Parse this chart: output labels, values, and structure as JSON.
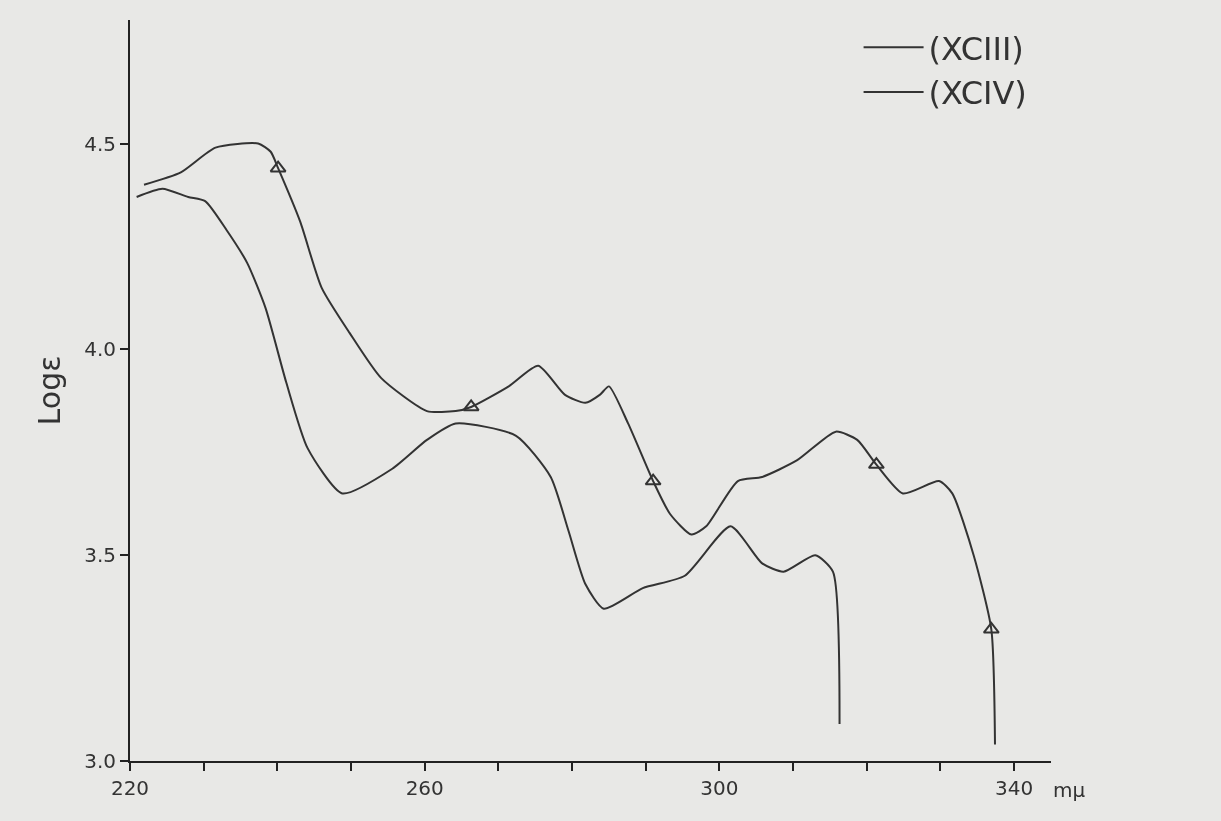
{
  "chart_data": {
    "type": "line",
    "xlabel": "mμ",
    "ylabel": "Logε",
    "xlim": [
      220,
      345
    ],
    "ylim": [
      3.0,
      4.8
    ],
    "xticks": [
      220,
      {
        "value": 230,
        "label": null
      },
      {
        "value": 240,
        "label": null
      },
      {
        "value": 250,
        "label": null
      },
      260,
      {
        "value": 270,
        "label": null
      },
      {
        "value": 280,
        "label": null
      },
      {
        "value": 290,
        "label": null
      },
      300,
      {
        "value": 310,
        "label": null
      },
      {
        "value": 320,
        "label": null
      },
      {
        "value": 330,
        "label": null
      },
      340
    ],
    "yticks": [
      {
        "value": 3.0,
        "label": "3.0"
      },
      3.5,
      {
        "value": 4.0,
        "label": "4.0"
      },
      4.5
    ],
    "grid": false,
    "legend": "top right",
    "line_style": "solid",
    "series": [
      {
        "name": "(XCIII)",
        "color": "#333333",
        "x": [
          221.9,
          226.9,
          231.6,
          237.4,
          239.1,
          240.1,
          243.1,
          246.0,
          249.8,
          254.1,
          260.3,
          264.2,
          266.3,
          271.4,
          275.4,
          279.0,
          281.8,
          283.8,
          285.0,
          287.6,
          291.0,
          293.3,
          296.2,
          298.2,
          302.5,
          305.8,
          310.5,
          315.8,
          318.7,
          321.3,
          324.9,
          329.8,
          331.6,
          334.5,
          336.9,
          337.4
        ],
        "values": [
          4.4,
          4.43,
          4.49,
          4.5,
          4.48,
          4.44,
          4.31,
          4.15,
          4.04,
          3.93,
          3.85,
          3.85,
          3.86,
          3.91,
          3.96,
          3.89,
          3.87,
          3.89,
          3.91,
          3.82,
          3.68,
          3.6,
          3.55,
          3.57,
          3.68,
          3.69,
          3.73,
          3.8,
          3.78,
          3.72,
          3.65,
          3.68,
          3.65,
          3.5,
          3.32,
          3.04
        ]
      },
      {
        "name": "(XCIV)",
        "color": "#333333",
        "x": [
          220.9,
          224.4,
          227.9,
          230.2,
          233.1,
          235.9,
          238.4,
          241.2,
          244.1,
          248.8,
          255.6,
          260.3,
          264.2,
          272.4,
          277.1,
          279.5,
          281.8,
          284.3,
          289.6,
          295.3,
          301.5,
          305.8,
          308.7,
          313.0,
          315.4,
          316.3
        ],
        "values": [
          4.37,
          4.39,
          4.37,
          4.36,
          4.29,
          4.21,
          4.1,
          3.92,
          3.76,
          3.65,
          3.71,
          3.78,
          3.82,
          3.79,
          3.69,
          3.56,
          3.43,
          3.37,
          3.42,
          3.45,
          3.57,
          3.48,
          3.46,
          3.5,
          3.46,
          3.09
        ]
      },
      {
        "type": "scatter",
        "color": "#333333",
        "marker": "triangle",
        "x": [
          240.1,
          266.3,
          291.0,
          321.3,
          336.9
        ],
        "values": [
          4.44,
          3.86,
          3.68,
          3.72,
          3.32
        ]
      }
    ]
  }
}
